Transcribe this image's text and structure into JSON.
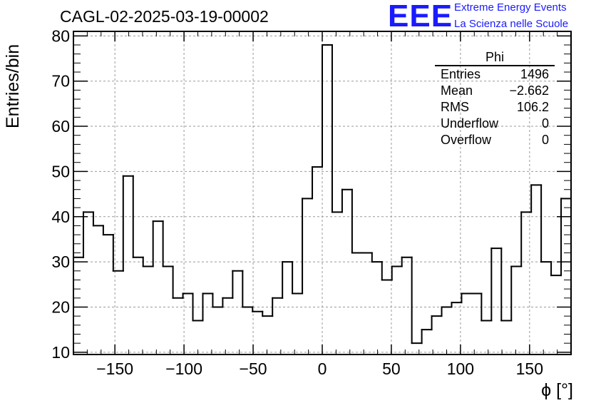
{
  "header": {
    "title": "CAGL-02-2025-03-19-00002"
  },
  "logo": {
    "mark": "EEE",
    "line1": "Extreme Energy Events",
    "line2": "La Scienza nelle Scuole"
  },
  "stats_box": {
    "name": "Phi",
    "rows": [
      {
        "label": "Entries",
        "value": "1496"
      },
      {
        "label": "Mean",
        "value": "−2.662"
      },
      {
        "label": "RMS",
        "value": "106.2"
      },
      {
        "label": "Underflow",
        "value": "0"
      },
      {
        "label": "Overflow",
        "value": "0"
      }
    ]
  },
  "chart_data": {
    "type": "histogram",
    "xlabel": "ϕ [°]",
    "ylabel": "Entries/bin",
    "xlim": [
      -180,
      180
    ],
    "ylim": [
      9.5,
      81
    ],
    "bin_width": 7.2,
    "bin_edges_start": -180,
    "values": [
      31,
      41,
      38,
      36,
      28,
      49,
      31,
      29,
      39,
      29,
      22,
      23,
      17,
      23,
      20,
      22,
      28,
      20,
      19,
      18,
      22,
      30,
      23,
      44,
      51,
      78,
      41,
      46,
      32,
      32,
      30,
      26,
      29,
      31,
      12,
      15,
      18,
      20,
      21,
      23,
      23,
      17,
      33,
      17,
      29,
      41,
      47,
      30,
      27,
      44
    ],
    "x_ticks": [
      -150,
      -100,
      -50,
      0,
      50,
      100,
      150
    ],
    "x_tick_labels": [
      "−150",
      "−100",
      "−50",
      "0",
      "50",
      "100",
      "150"
    ],
    "y_ticks": [
      10,
      20,
      30,
      40,
      50,
      60,
      70,
      80
    ],
    "y_tick_labels": [
      "10",
      "20",
      "30",
      "40",
      "50",
      "60",
      "70",
      "80"
    ],
    "grid": true,
    "colors": {
      "line": "#000000",
      "grid": "#999999",
      "logo": "#1a1aff"
    }
  }
}
